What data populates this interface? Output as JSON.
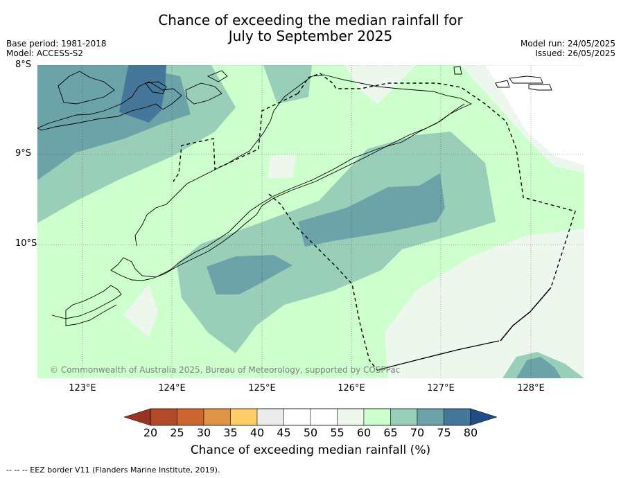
{
  "title_line1": "Chance of exceeding the median rainfall for",
  "title_line2": "July to September 2025",
  "base_period": "Base period: 1981-2018",
  "model": "Model: ACCESS-S2",
  "model_run": "Model run: 24/05/2025",
  "issued": "Issued: 26/05/2025",
  "lat_labels": [
    "8°S",
    "9°S",
    "10°S"
  ],
  "lon_labels": [
    "123°E",
    "124°E",
    "125°E",
    "126°E",
    "127°E",
    "128°E"
  ],
  "copyright": "© Commonwealth of Australia 2025, Bureau of Meteorology, supported by COSPPac",
  "colorbar": {
    "title": "Chance of exceeding median rainfall (%)",
    "ticks": [
      "20",
      "25",
      "30",
      "35",
      "40",
      "45",
      "50",
      "55",
      "60",
      "65",
      "70",
      "75",
      "80"
    ],
    "colors": [
      "#b24a2a",
      "#cc6633",
      "#e09447",
      "#ffcc66",
      "#ebebeb",
      "#ffffff",
      "#ffffff",
      "#eef7ee",
      "#ccffcc",
      "#99cfb8",
      "#6ba3a8",
      "#447799"
    ],
    "under_color": "#993322",
    "over_color": "#224c88"
  },
  "legend_note": "-- -- -- EEZ border V11 (Flanders Marine Institute, 2019)."
}
